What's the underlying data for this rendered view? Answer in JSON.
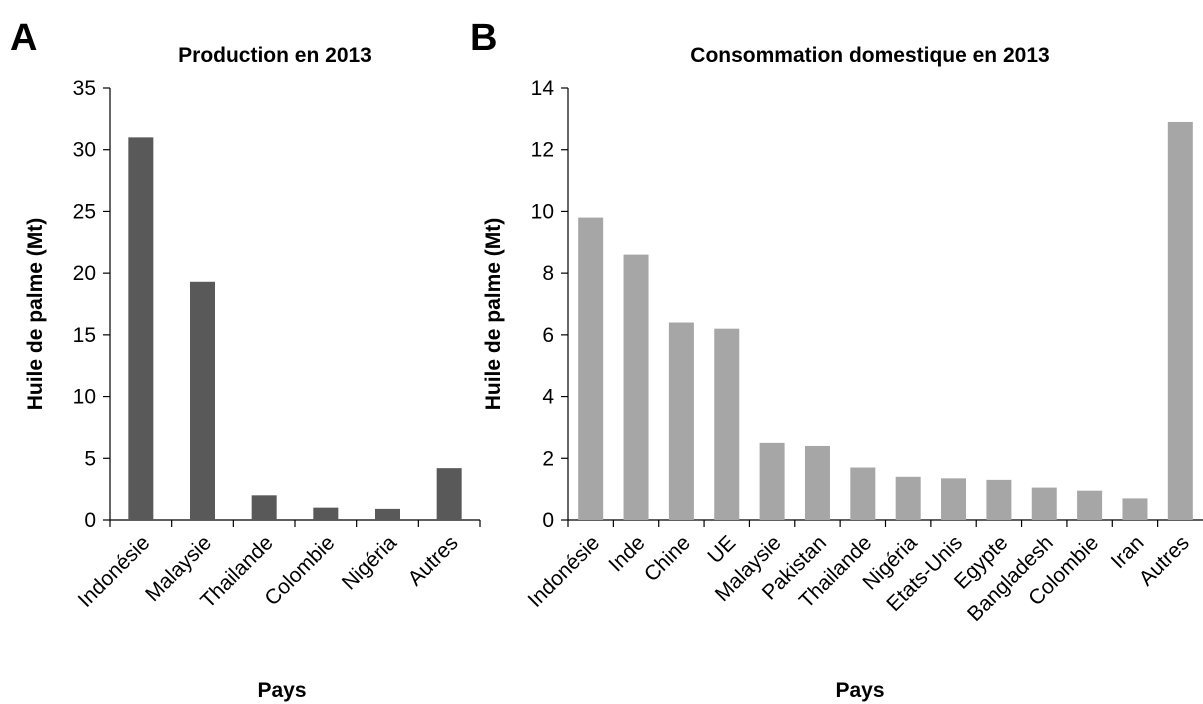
{
  "chart_data": [
    {
      "panel": "A",
      "type": "bar",
      "title": "Production en 2013",
      "xlabel": "Pays",
      "ylabel": "Huile de palme (Mt)",
      "ylim": [
        0,
        35
      ],
      "yticks": [
        0,
        5,
        10,
        15,
        20,
        25,
        30,
        35
      ],
      "grid": false,
      "bar_color": "#595959",
      "categories": [
        "Indonésie",
        "Malaysie",
        "Thailande",
        "Colombie",
        "Nigéria",
        "Autres"
      ],
      "values": [
        31.0,
        19.3,
        2.0,
        1.0,
        0.9,
        4.2
      ]
    },
    {
      "panel": "B",
      "type": "bar",
      "title": "Consommation domestique en 2013",
      "xlabel": "Pays",
      "ylabel": "Huile de palme (Mt)",
      "ylim": [
        0,
        14
      ],
      "yticks": [
        0,
        2,
        4,
        6,
        8,
        10,
        12,
        14
      ],
      "grid": false,
      "bar_color": "#a6a6a6",
      "categories": [
        "Indonésie",
        "Inde",
        "Chine",
        "UE",
        "Malaysie",
        "Pakistan",
        "Thailande",
        "Nigéria",
        "Etats-Unis",
        "Egypte",
        "Bangladesh",
        "Colombie",
        "Iran",
        "Autres"
      ],
      "values": [
        9.8,
        8.6,
        6.4,
        6.2,
        2.5,
        2.4,
        1.7,
        1.4,
        1.35,
        1.3,
        1.05,
        0.95,
        0.7,
        12.9
      ]
    }
  ]
}
